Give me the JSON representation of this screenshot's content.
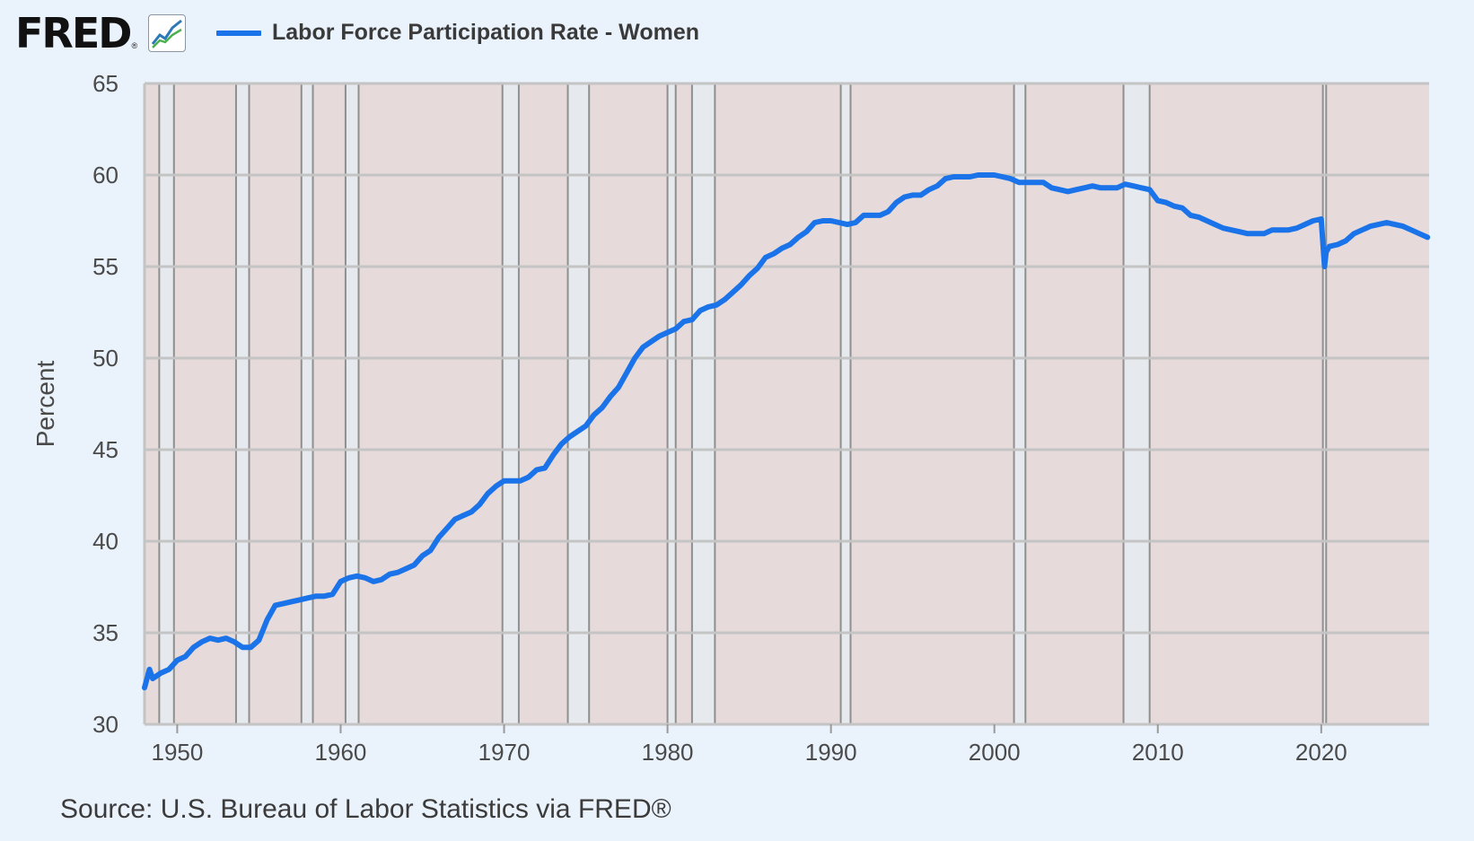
{
  "header": {
    "logo_text": "FRED",
    "logo_reg": "®",
    "logo_icon": "line-chart-icon"
  },
  "legend": {
    "label": "Labor Force Participation Rate - Women",
    "color": "#1a73e8"
  },
  "source": "Source: U.S. Bureau of Labor Statistics via FRED®",
  "chart_data": {
    "type": "line",
    "title": "",
    "xlabel": "",
    "ylabel": "Percent",
    "ylim": [
      30,
      65
    ],
    "xlim": [
      1948.0,
      2026.6
    ],
    "yticks": [
      30,
      35,
      40,
      45,
      50,
      55,
      60,
      65
    ],
    "xticks": [
      1950,
      1960,
      1970,
      1980,
      1990,
      2000,
      2010,
      2020
    ],
    "grid": true,
    "background_color": "#e6dada",
    "band_color": "#e6eaee",
    "line_color": "#1a73e8",
    "recessions": [
      [
        1948.9,
        1949.8
      ],
      [
        1953.6,
        1954.4
      ],
      [
        1957.6,
        1958.3
      ],
      [
        1960.3,
        1961.1
      ],
      [
        1969.9,
        1970.9
      ],
      [
        1973.9,
        1975.2
      ],
      [
        1980.0,
        1980.5
      ],
      [
        1981.5,
        1982.9
      ],
      [
        1990.6,
        1991.2
      ],
      [
        2001.2,
        2001.9
      ],
      [
        2007.9,
        2009.5
      ],
      [
        2020.1,
        2020.3
      ]
    ],
    "series": [
      {
        "name": "Labor Force Participation Rate - Women",
        "x": [
          1948.0,
          1948.3,
          1948.5,
          1949.0,
          1949.5,
          1950.0,
          1950.5,
          1951.0,
          1951.5,
          1952.0,
          1952.5,
          1953.0,
          1953.5,
          1954.0,
          1954.5,
          1955.0,
          1955.5,
          1956.0,
          1956.5,
          1957.0,
          1957.5,
          1958.0,
          1958.5,
          1959.0,
          1959.5,
          1960.0,
          1960.5,
          1961.0,
          1961.5,
          1962.0,
          1962.5,
          1963.0,
          1963.5,
          1964.0,
          1964.5,
          1965.0,
          1965.5,
          1966.0,
          1966.5,
          1967.0,
          1967.5,
          1968.0,
          1968.5,
          1969.0,
          1969.5,
          1970.0,
          1970.5,
          1971.0,
          1971.5,
          1972.0,
          1972.5,
          1973.0,
          1973.5,
          1974.0,
          1974.5,
          1975.0,
          1975.5,
          1976.0,
          1976.5,
          1977.0,
          1977.5,
          1978.0,
          1978.5,
          1979.0,
          1979.5,
          1980.0,
          1980.5,
          1981.0,
          1981.5,
          1982.0,
          1982.5,
          1983.0,
          1983.5,
          1984.0,
          1984.5,
          1985.0,
          1985.5,
          1986.0,
          1986.5,
          1987.0,
          1987.5,
          1988.0,
          1988.5,
          1989.0,
          1989.5,
          1990.0,
          1990.5,
          1991.0,
          1991.5,
          1992.0,
          1992.5,
          1993.0,
          1993.5,
          1994.0,
          1994.5,
          1995.0,
          1995.5,
          1996.0,
          1996.5,
          1997.0,
          1997.5,
          1998.0,
          1998.5,
          1999.0,
          1999.5,
          2000.0,
          2000.5,
          2001.0,
          2001.5,
          2002.0,
          2002.5,
          2003.0,
          2003.5,
          2004.0,
          2004.5,
          2005.0,
          2005.5,
          2006.0,
          2006.5,
          2007.0,
          2007.5,
          2008.0,
          2008.5,
          2009.0,
          2009.5,
          2010.0,
          2010.5,
          2011.0,
          2011.5,
          2012.0,
          2012.5,
          2013.0,
          2013.5,
          2014.0,
          2014.5,
          2015.0,
          2015.5,
          2016.0,
          2016.5,
          2017.0,
          2017.5,
          2018.0,
          2018.5,
          2019.0,
          2019.5,
          2020.0,
          2020.2,
          2020.3,
          2020.5,
          2021.0,
          2021.5,
          2022.0,
          2022.5,
          2023.0,
          2023.5,
          2024.0,
          2024.5,
          2025.0,
          2025.5,
          2026.0,
          2026.5
        ],
        "values": [
          32.0,
          33.0,
          32.5,
          32.8,
          33.0,
          33.5,
          33.7,
          34.2,
          34.5,
          34.7,
          34.6,
          34.7,
          34.5,
          34.2,
          34.2,
          34.6,
          35.7,
          36.5,
          36.6,
          36.7,
          36.8,
          36.9,
          37.0,
          37.0,
          37.1,
          37.8,
          38.0,
          38.1,
          38.0,
          37.8,
          37.9,
          38.2,
          38.3,
          38.5,
          38.7,
          39.2,
          39.5,
          40.2,
          40.7,
          41.2,
          41.4,
          41.6,
          42.0,
          42.6,
          43.0,
          43.3,
          43.3,
          43.3,
          43.5,
          43.9,
          44.0,
          44.7,
          45.3,
          45.7,
          46.0,
          46.3,
          46.9,
          47.3,
          47.9,
          48.4,
          49.2,
          50.0,
          50.6,
          50.9,
          51.2,
          51.4,
          51.6,
          52.0,
          52.1,
          52.6,
          52.8,
          52.9,
          53.2,
          53.6,
          54.0,
          54.5,
          54.9,
          55.5,
          55.7,
          56.0,
          56.2,
          56.6,
          56.9,
          57.4,
          57.5,
          57.5,
          57.4,
          57.3,
          57.4,
          57.8,
          57.8,
          57.8,
          58.0,
          58.5,
          58.8,
          58.9,
          58.9,
          59.2,
          59.4,
          59.8,
          59.9,
          59.9,
          59.9,
          60.0,
          60.0,
          60.0,
          59.9,
          59.8,
          59.6,
          59.6,
          59.6,
          59.6,
          59.3,
          59.2,
          59.1,
          59.2,
          59.3,
          59.4,
          59.3,
          59.3,
          59.3,
          59.5,
          59.4,
          59.3,
          59.2,
          58.6,
          58.5,
          58.3,
          58.2,
          57.8,
          57.7,
          57.5,
          57.3,
          57.1,
          57.0,
          56.9,
          56.8,
          56.8,
          56.8,
          57.0,
          57.0,
          57.0,
          57.1,
          57.3,
          57.5,
          57.6,
          55.0,
          55.8,
          56.1,
          56.2,
          56.4,
          56.8,
          57.0,
          57.2,
          57.3,
          57.4,
          57.3,
          57.2,
          57.0,
          56.8,
          56.6
        ]
      }
    ]
  }
}
